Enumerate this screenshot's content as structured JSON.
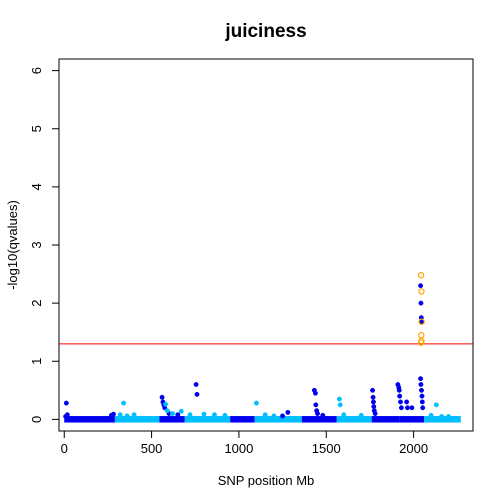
{
  "chart_data": {
    "type": "scatter",
    "title": "juiciness",
    "xlabel": "SNP position Mb",
    "ylabel": "-log10(qvalues)",
    "xlim": [
      -30,
      2340
    ],
    "ylim": [
      -0.2,
      6.2
    ],
    "x_ticks": [
      0,
      500,
      1000,
      1500,
      2000
    ],
    "x_tick_labels": [
      "0",
      "500",
      "1000",
      "1500",
      "2000"
    ],
    "y_ticks": [
      0,
      1,
      2,
      3,
      4,
      5,
      6
    ],
    "y_tick_labels": [
      "0",
      "1",
      "2",
      "3",
      "4",
      "5",
      "6"
    ],
    "threshold": {
      "y": 1.3,
      "color": "#ff0000"
    },
    "grid": false,
    "colors": {
      "dark": "#0000ee",
      "light": "#00bfff",
      "significant": "#ffa500"
    },
    "chromosomes": [
      {
        "start": 0,
        "end": 290,
        "color": "dark"
      },
      {
        "start": 290,
        "end": 545,
        "color": "light"
      },
      {
        "start": 545,
        "end": 690,
        "color": "dark"
      },
      {
        "start": 690,
        "end": 950,
        "color": "light"
      },
      {
        "start": 950,
        "end": 1090,
        "color": "dark"
      },
      {
        "start": 1090,
        "end": 1360,
        "color": "light"
      },
      {
        "start": 1360,
        "end": 1560,
        "color": "dark"
      },
      {
        "start": 1560,
        "end": 1760,
        "color": "light"
      },
      {
        "start": 1760,
        "end": 1920,
        "color": "dark"
      },
      {
        "start": 1920,
        "end": 2060,
        "color": "dark"
      },
      {
        "start": 2060,
        "end": 2270,
        "color": "light"
      }
    ],
    "series": [
      {
        "color": "dark",
        "points": [
          [
            12,
            0.28
          ],
          [
            8,
            0.05
          ],
          [
            18,
            0.08
          ],
          [
            270,
            0.07
          ],
          [
            282,
            0.09
          ],
          [
            560,
            0.38
          ],
          [
            565,
            0.3
          ],
          [
            570,
            0.25
          ],
          [
            575,
            0.2
          ],
          [
            600,
            0.1
          ],
          [
            650,
            0.08
          ],
          [
            755,
            0.6
          ],
          [
            760,
            0.43
          ],
          [
            1250,
            0.06
          ],
          [
            1280,
            0.12
          ],
          [
            1432,
            0.5
          ],
          [
            1438,
            0.45
          ],
          [
            1440,
            0.25
          ],
          [
            1445,
            0.15
          ],
          [
            1450,
            0.1
          ],
          [
            1480,
            0.07
          ],
          [
            1765,
            0.5
          ],
          [
            1768,
            0.38
          ],
          [
            1770,
            0.3
          ],
          [
            1772,
            0.22
          ],
          [
            1775,
            0.15
          ],
          [
            1780,
            0.1
          ],
          [
            1910,
            0.6
          ],
          [
            1915,
            0.55
          ],
          [
            1918,
            0.5
          ],
          [
            1920,
            0.4
          ],
          [
            1925,
            0.3
          ],
          [
            1930,
            0.2
          ],
          [
            1960,
            0.3
          ],
          [
            1965,
            0.2
          ],
          [
            1990,
            0.2
          ],
          [
            2040,
            2.3
          ],
          [
            2042,
            2.0
          ],
          [
            2044,
            1.75
          ],
          [
            2046,
            1.68
          ],
          [
            2040,
            0.7
          ],
          [
            2042,
            0.6
          ],
          [
            2045,
            0.5
          ],
          [
            2048,
            0.4
          ],
          [
            2050,
            0.3
          ],
          [
            2052,
            0.2
          ]
        ]
      },
      {
        "color": "light",
        "points": [
          [
            340,
            0.28
          ],
          [
            320,
            0.08
          ],
          [
            360,
            0.06
          ],
          [
            400,
            0.08
          ],
          [
            580,
            0.26
          ],
          [
            590,
            0.15
          ],
          [
            620,
            0.1
          ],
          [
            670,
            0.14
          ],
          [
            720,
            0.08
          ],
          [
            800,
            0.09
          ],
          [
            860,
            0.08
          ],
          [
            920,
            0.07
          ],
          [
            1100,
            0.28
          ],
          [
            1150,
            0.08
          ],
          [
            1200,
            0.06
          ],
          [
            1575,
            0.35
          ],
          [
            1580,
            0.25
          ],
          [
            1600,
            0.08
          ],
          [
            1700,
            0.07
          ],
          [
            2130,
            0.25
          ],
          [
            2100,
            0.07
          ],
          [
            2160,
            0.05
          ],
          [
            2200,
            0.05
          ]
        ]
      },
      {
        "color": "significant",
        "hollow": true,
        "points": [
          [
            2043,
            2.48
          ],
          [
            2045,
            2.2
          ],
          [
            2046,
            1.68
          ],
          [
            2044,
            1.45
          ],
          [
            2045,
            1.35
          ],
          [
            2043,
            1.32
          ]
        ]
      }
    ]
  }
}
